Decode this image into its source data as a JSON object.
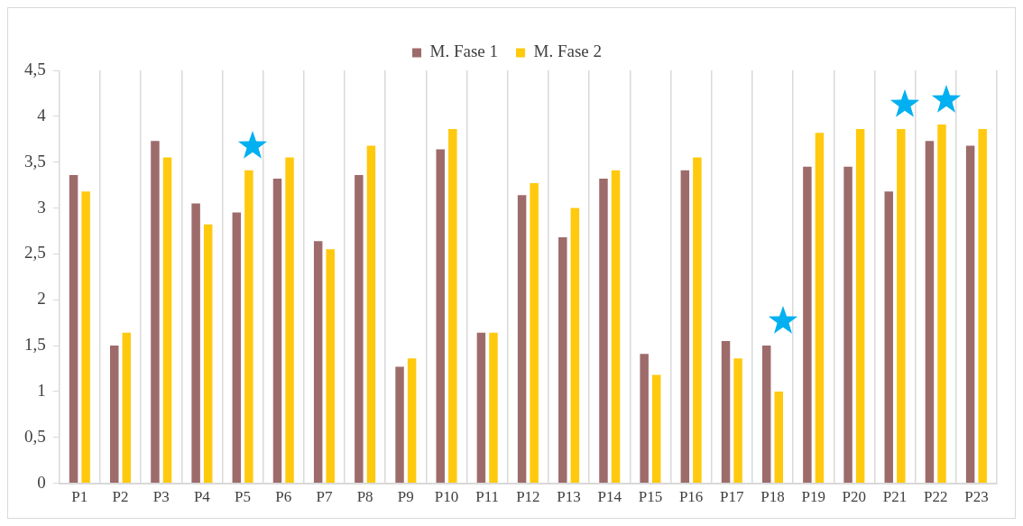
{
  "chart_data": {
    "type": "bar",
    "categories": [
      "P1",
      "P2",
      "P3",
      "P4",
      "P5",
      "P6",
      "P7",
      "P8",
      "P9",
      "P10",
      "P11",
      "P12",
      "P13",
      "P14",
      "P15",
      "P16",
      "P17",
      "P18",
      "P19",
      "P20",
      "P21",
      "P22",
      "P23"
    ],
    "series": [
      {
        "name": "M. Fase 1",
        "color": "#9e6b6b",
        "values": [
          3.36,
          1.5,
          3.73,
          3.05,
          2.95,
          3.32,
          2.64,
          3.36,
          1.27,
          3.64,
          1.64,
          3.14,
          2.68,
          3.32,
          1.41,
          3.41,
          1.55,
          1.5,
          3.45,
          3.45,
          3.18,
          3.73,
          3.68
        ]
      },
      {
        "name": "M. Fase 2",
        "color": "#ffc90e",
        "values": [
          3.18,
          1.64,
          3.55,
          2.82,
          3.41,
          3.55,
          2.55,
          3.68,
          1.36,
          3.86,
          1.64,
          3.27,
          3.0,
          3.41,
          1.18,
          3.55,
          1.36,
          1.0,
          3.82,
          3.86,
          3.86,
          3.91,
          3.86
        ]
      }
    ],
    "ylim": [
      0,
      4.5
    ],
    "yticks": [
      0,
      {
        "value": 0.5,
        "label": "0,5"
      },
      1,
      {
        "value": 1.5,
        "label": "1,5"
      },
      2,
      {
        "value": 2.5,
        "label": "2,5"
      },
      3,
      {
        "value": 3.5,
        "label": "3,5"
      },
      4,
      {
        "value": 4.5,
        "label": "4,5"
      }
    ],
    "grid": "x",
    "legend": "top"
  }
}
